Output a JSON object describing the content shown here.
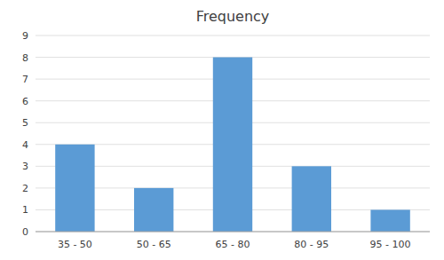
{
  "chart_data": {
    "type": "bar",
    "title": "Frequency",
    "categories": [
      "35 - 50",
      "50 - 65",
      "65 - 80",
      "80 - 95",
      "95 - 100"
    ],
    "values": [
      4,
      2,
      8,
      3,
      1
    ],
    "color": "#5B9BD5",
    "ylim": [
      0,
      9
    ],
    "yticks": [
      0,
      1,
      2,
      3,
      4,
      5,
      6,
      7,
      8,
      9
    ],
    "grid": true
  }
}
